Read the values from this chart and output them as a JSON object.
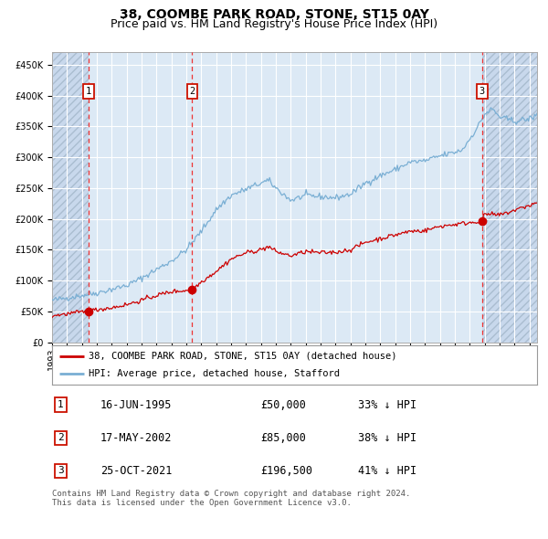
{
  "title": "38, COOMBE PARK ROAD, STONE, ST15 0AY",
  "subtitle": "Price paid vs. HM Land Registry's House Price Index (HPI)",
  "xlim_start": 1993.0,
  "xlim_end": 2025.5,
  "ylim": [
    0,
    470000
  ],
  "yticks": [
    0,
    50000,
    100000,
    150000,
    200000,
    250000,
    300000,
    350000,
    400000,
    450000
  ],
  "sale_dates": [
    1995.46,
    2002.38,
    2021.82
  ],
  "sale_prices": [
    50000,
    85000,
    196500
  ],
  "sale_labels": [
    "1",
    "2",
    "3"
  ],
  "sale_info": [
    {
      "label": "1",
      "date": "16-JUN-1995",
      "price": "£50,000",
      "note": "33% ↓ HPI"
    },
    {
      "label": "2",
      "date": "17-MAY-2002",
      "price": "£85,000",
      "note": "38% ↓ HPI"
    },
    {
      "label": "3",
      "date": "25-OCT-2021",
      "price": "£196,500",
      "note": "41% ↓ HPI"
    }
  ],
  "legend_line1": "38, COOMBE PARK ROAD, STONE, ST15 0AY (detached house)",
  "legend_line2": "HPI: Average price, detached house, Stafford",
  "footer": "Contains HM Land Registry data © Crown copyright and database right 2024.\nThis data is licensed under the Open Government Licence v3.0.",
  "bg_color": "#dce9f5",
  "hatch_bg_color": "#c8d8ec",
  "grid_color": "#ffffff",
  "red_line_color": "#cc0000",
  "blue_line_color": "#7aafd4",
  "dot_color": "#cc0000",
  "dashed_line_color": "#ee3333",
  "title_fontsize": 10,
  "subtitle_fontsize": 9,
  "axis_fontsize": 7,
  "ylabel_fontsize": 8
}
